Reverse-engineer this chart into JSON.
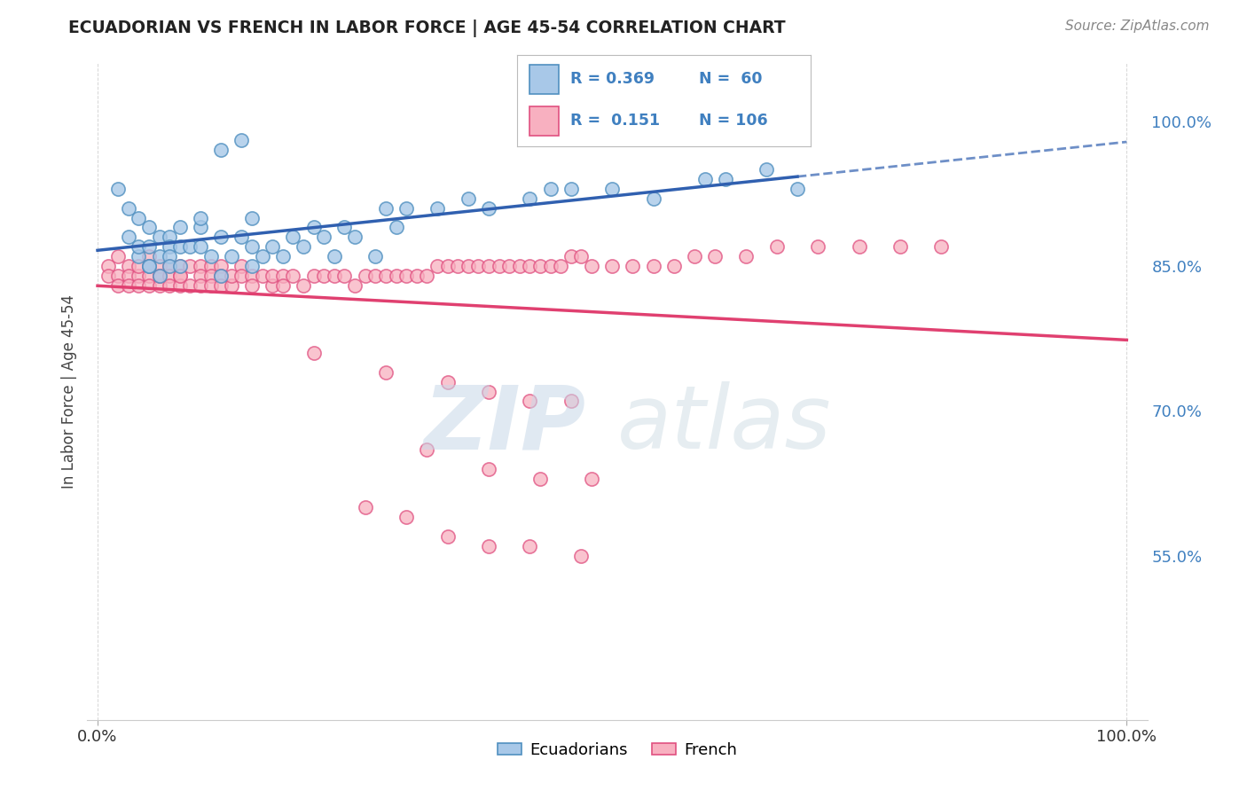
{
  "title": "ECUADORIAN VS FRENCH IN LABOR FORCE | AGE 45-54 CORRELATION CHART",
  "source_text": "Source: ZipAtlas.com",
  "ylabel": "In Labor Force | Age 45-54",
  "xlim": [
    -0.01,
    1.02
  ],
  "ylim": [
    0.38,
    1.06
  ],
  "xtick_labels": [
    "0.0%",
    "100.0%"
  ],
  "ytick_positions": [
    0.55,
    0.7,
    0.85,
    1.0
  ],
  "ytick_labels": [
    "55.0%",
    "70.0%",
    "85.0%",
    "100.0%"
  ],
  "legend_r_blue": "R = 0.369",
  "legend_n_blue": "N =  60",
  "legend_r_pink": "R =  0.151",
  "legend_n_pink": "N = 106",
  "blue_face": "#a8c8e8",
  "blue_edge": "#5090c0",
  "pink_face": "#f8b0c0",
  "pink_edge": "#e05080",
  "blue_line": "#3060b0",
  "pink_line": "#e04070",
  "tick_color": "#4080c0",
  "watermark_zip": "ZIP",
  "watermark_atlas": "atlas",
  "blue_x": [
    0.02,
    0.03,
    0.03,
    0.04,
    0.04,
    0.04,
    0.05,
    0.05,
    0.05,
    0.05,
    0.06,
    0.06,
    0.06,
    0.07,
    0.07,
    0.07,
    0.07,
    0.08,
    0.08,
    0.08,
    0.09,
    0.1,
    0.1,
    0.1,
    0.11,
    0.12,
    0.12,
    0.13,
    0.14,
    0.15,
    0.15,
    0.15,
    0.16,
    0.17,
    0.18,
    0.19,
    0.2,
    0.21,
    0.22,
    0.23,
    0.24,
    0.25,
    0.27,
    0.28,
    0.29,
    0.3,
    0.33,
    0.36,
    0.38,
    0.42,
    0.44,
    0.46,
    0.5,
    0.54,
    0.59,
    0.61,
    0.65,
    0.68,
    0.12,
    0.14
  ],
  "blue_y": [
    0.93,
    0.91,
    0.88,
    0.86,
    0.9,
    0.87,
    0.85,
    0.87,
    0.89,
    0.85,
    0.86,
    0.88,
    0.84,
    0.88,
    0.87,
    0.86,
    0.85,
    0.89,
    0.87,
    0.85,
    0.87,
    0.89,
    0.9,
    0.87,
    0.86,
    0.88,
    0.84,
    0.86,
    0.88,
    0.9,
    0.87,
    0.85,
    0.86,
    0.87,
    0.86,
    0.88,
    0.87,
    0.89,
    0.88,
    0.86,
    0.89,
    0.88,
    0.86,
    0.91,
    0.89,
    0.91,
    0.91,
    0.92,
    0.91,
    0.92,
    0.93,
    0.93,
    0.93,
    0.92,
    0.94,
    0.94,
    0.95,
    0.93,
    0.97,
    0.98
  ],
  "pink_x": [
    0.01,
    0.01,
    0.02,
    0.02,
    0.02,
    0.03,
    0.03,
    0.03,
    0.04,
    0.04,
    0.04,
    0.05,
    0.05,
    0.05,
    0.05,
    0.06,
    0.06,
    0.06,
    0.06,
    0.07,
    0.07,
    0.07,
    0.08,
    0.08,
    0.08,
    0.08,
    0.09,
    0.09,
    0.1,
    0.1,
    0.1,
    0.11,
    0.11,
    0.11,
    0.12,
    0.12,
    0.12,
    0.13,
    0.13,
    0.14,
    0.14,
    0.15,
    0.15,
    0.16,
    0.17,
    0.17,
    0.18,
    0.18,
    0.19,
    0.2,
    0.21,
    0.22,
    0.23,
    0.24,
    0.25,
    0.26,
    0.27,
    0.28,
    0.29,
    0.3,
    0.31,
    0.32,
    0.33,
    0.34,
    0.35,
    0.36,
    0.37,
    0.38,
    0.39,
    0.4,
    0.41,
    0.42,
    0.43,
    0.44,
    0.45,
    0.46,
    0.47,
    0.48,
    0.5,
    0.52,
    0.54,
    0.56,
    0.58,
    0.6,
    0.63,
    0.66,
    0.7,
    0.74,
    0.78,
    0.82,
    0.21,
    0.28,
    0.34,
    0.38,
    0.42,
    0.46,
    0.32,
    0.38,
    0.43,
    0.48,
    0.26,
    0.3,
    0.34,
    0.38,
    0.42,
    0.47
  ],
  "pink_y": [
    0.85,
    0.84,
    0.86,
    0.84,
    0.83,
    0.85,
    0.84,
    0.83,
    0.84,
    0.83,
    0.85,
    0.86,
    0.85,
    0.84,
    0.83,
    0.84,
    0.83,
    0.85,
    0.84,
    0.85,
    0.84,
    0.83,
    0.85,
    0.84,
    0.83,
    0.84,
    0.85,
    0.83,
    0.85,
    0.84,
    0.83,
    0.85,
    0.84,
    0.83,
    0.85,
    0.84,
    0.83,
    0.83,
    0.84,
    0.85,
    0.84,
    0.84,
    0.83,
    0.84,
    0.83,
    0.84,
    0.84,
    0.83,
    0.84,
    0.83,
    0.84,
    0.84,
    0.84,
    0.84,
    0.83,
    0.84,
    0.84,
    0.84,
    0.84,
    0.84,
    0.84,
    0.84,
    0.85,
    0.85,
    0.85,
    0.85,
    0.85,
    0.85,
    0.85,
    0.85,
    0.85,
    0.85,
    0.85,
    0.85,
    0.85,
    0.86,
    0.86,
    0.85,
    0.85,
    0.85,
    0.85,
    0.85,
    0.86,
    0.86,
    0.86,
    0.87,
    0.87,
    0.87,
    0.87,
    0.87,
    0.76,
    0.74,
    0.73,
    0.72,
    0.71,
    0.71,
    0.66,
    0.64,
    0.63,
    0.63,
    0.6,
    0.59,
    0.57,
    0.56,
    0.56,
    0.55
  ]
}
